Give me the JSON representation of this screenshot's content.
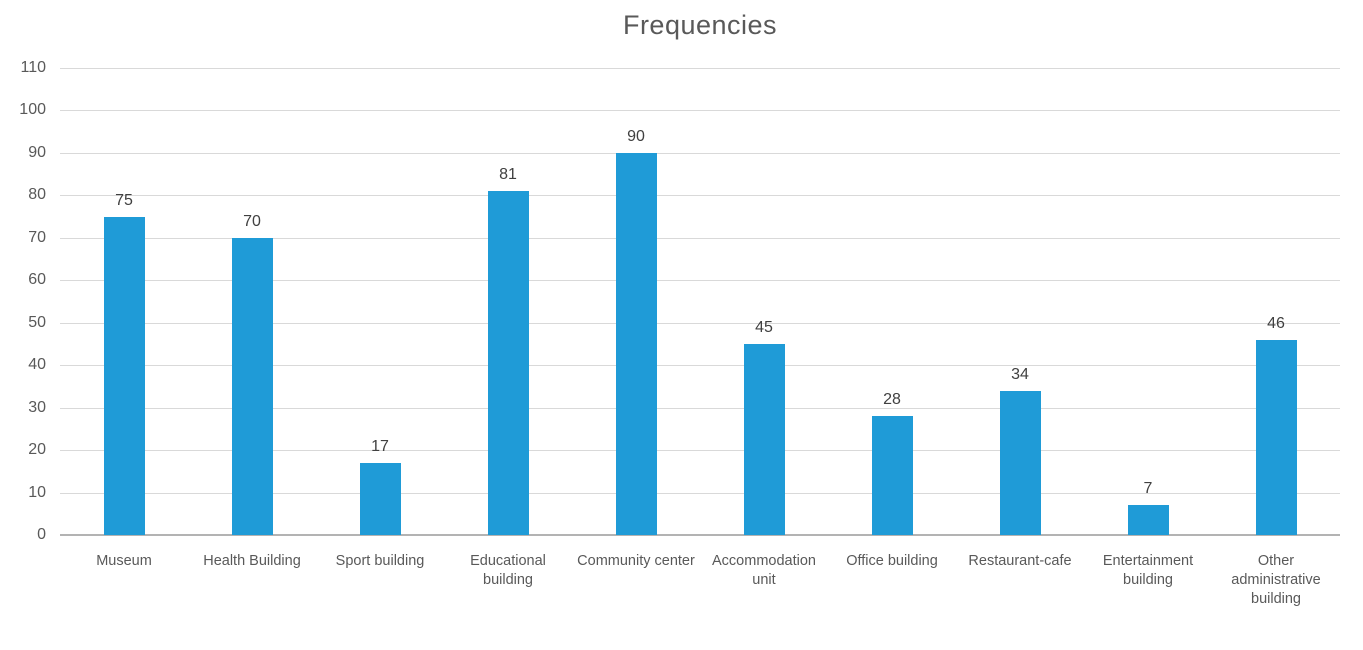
{
  "chart_data": {
    "type": "bar",
    "title": "Frequencies",
    "categories": [
      "Museum",
      "Health Building",
      "Sport building",
      "Educational building",
      "Community center",
      "Accommodation unit",
      "Office building",
      "Restaurant-cafe",
      "Entertainment building",
      "Other administrative building"
    ],
    "values": [
      75,
      70,
      17,
      81,
      90,
      45,
      28,
      34,
      7,
      46
    ],
    "xlabel": "",
    "ylabel": "",
    "ylim": [
      0,
      110
    ],
    "yticks": [
      0,
      10,
      20,
      30,
      40,
      50,
      60,
      70,
      80,
      90,
      100,
      110
    ],
    "grid": "horizontal",
    "legend": "none",
    "data_labels": "above-bars",
    "colors": {
      "bar": "#1F9BD7",
      "gridline": "#d9d9d9",
      "axis_line": "#b3b3b3",
      "title_text": "#595959",
      "tick_text": "#595959",
      "value_text": "#404040"
    }
  }
}
